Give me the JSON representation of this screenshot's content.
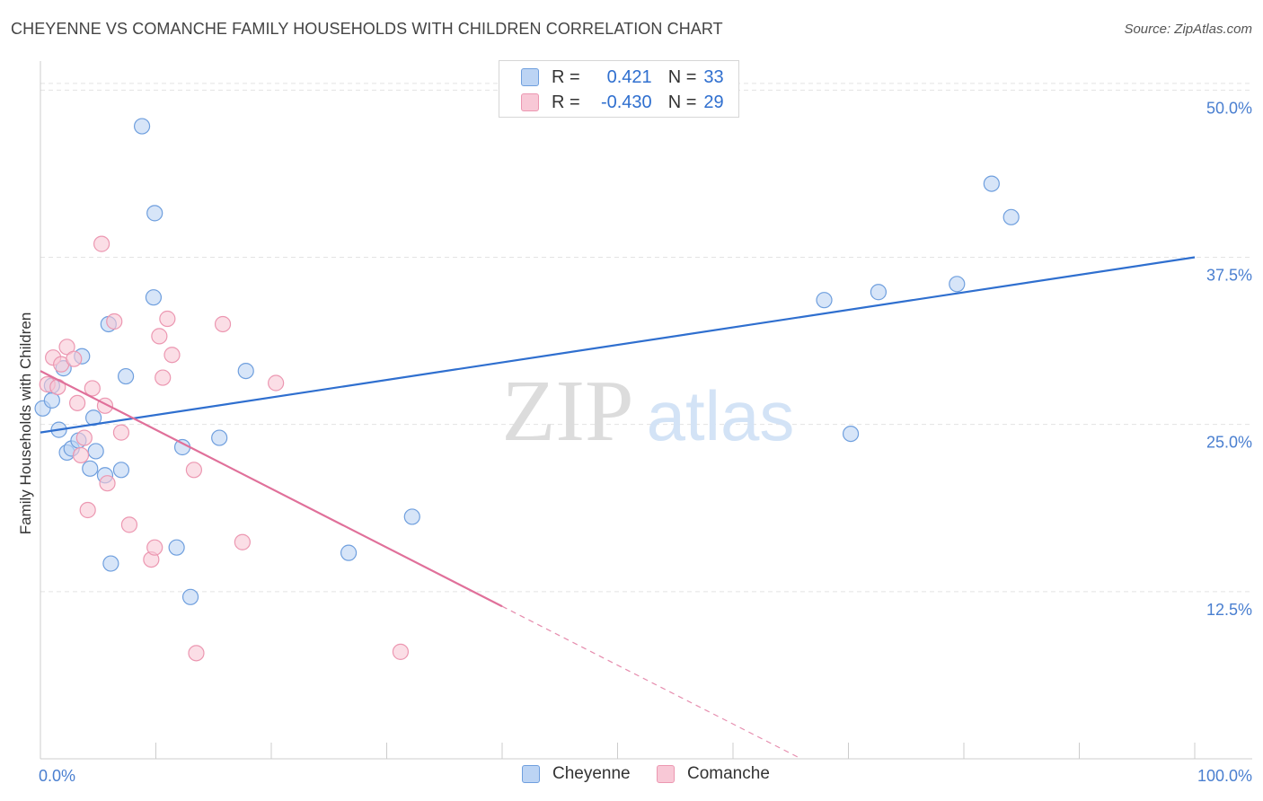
{
  "header": {
    "title": "CHEYENNE VS COMANCHE FAMILY HOUSEHOLDS WITH CHILDREN CORRELATION CHART",
    "source": "Source: ZipAtlas.com"
  },
  "watermark": {
    "zip": "ZIP",
    "atlas": "atlas"
  },
  "colors": {
    "cheyenne_fill": "#bcd4f4",
    "cheyenne_stroke": "#6f9fde",
    "cheyenne_line": "#2f6fcf",
    "comanche_fill": "#f8c8d6",
    "comanche_stroke": "#ec97b1",
    "comanche_line": "#e0709a",
    "axis_text": "#4a7fd0",
    "grid": "#e3e3e3"
  },
  "legend": {
    "rows": [
      {
        "r_label": "R =",
        "r_value": "0.421",
        "n_label": "N =",
        "n_value": "33"
      },
      {
        "r_label": "R =",
        "r_value": "-0.430",
        "n_label": "N =",
        "n_value": "29"
      }
    ]
  },
  "bottom_legend": {
    "cheyenne": "Cheyenne",
    "comanche": "Comanche"
  },
  "chart_data": {
    "type": "scatter",
    "title": "CHEYENNE VS COMANCHE FAMILY HOUSEHOLDS WITH CHILDREN CORRELATION CHART",
    "xlabel": "",
    "ylabel": "Family Households with Children",
    "xlim": [
      0,
      100
    ],
    "ylim": [
      0,
      51.5
    ],
    "x_tick_labels": [
      "0.0%",
      "100.0%"
    ],
    "y_ticks": [
      12.5,
      25.0,
      37.5,
      50.0
    ],
    "y_tick_labels": [
      "12.5%",
      "25.0%",
      "37.5%",
      "50.0%"
    ],
    "grid": true,
    "legend_position": "top-center",
    "series": [
      {
        "name": "Cheyenne",
        "r": 0.421,
        "n": 33,
        "trend": {
          "x0": 0,
          "y0": 24.4,
          "x1": 100,
          "y1": 37.5,
          "dashed_from": null
        },
        "points": [
          [
            0.2,
            26.2
          ],
          [
            1.0,
            27.9
          ],
          [
            1.0,
            26.8
          ],
          [
            1.6,
            24.6
          ],
          [
            2.0,
            29.2
          ],
          [
            2.3,
            22.9
          ],
          [
            2.7,
            23.2
          ],
          [
            3.3,
            23.8
          ],
          [
            3.6,
            30.1
          ],
          [
            4.3,
            21.7
          ],
          [
            4.6,
            25.5
          ],
          [
            4.8,
            23.0
          ],
          [
            5.6,
            21.2
          ],
          [
            5.9,
            32.5
          ],
          [
            6.1,
            14.6
          ],
          [
            7.0,
            21.6
          ],
          [
            7.4,
            28.6
          ],
          [
            8.8,
            47.3
          ],
          [
            9.8,
            34.5
          ],
          [
            9.9,
            40.8
          ],
          [
            12.3,
            23.3
          ],
          [
            11.8,
            15.8
          ],
          [
            13.0,
            12.1
          ],
          [
            15.5,
            24.0
          ],
          [
            17.8,
            29.0
          ],
          [
            26.7,
            15.4
          ],
          [
            32.2,
            18.1
          ],
          [
            67.9,
            34.3
          ],
          [
            70.2,
            24.3
          ],
          [
            72.6,
            34.9
          ],
          [
            79.4,
            35.5
          ],
          [
            82.4,
            43.0
          ],
          [
            84.1,
            40.5
          ]
        ]
      },
      {
        "name": "Comanche",
        "r": -0.43,
        "n": 29,
        "trend": {
          "x0": 0,
          "y0": 29.0,
          "x1": 100,
          "y1": -15.0,
          "dashed_from": 40
        },
        "points": [
          [
            0.6,
            28.0
          ],
          [
            1.1,
            30.0
          ],
          [
            1.5,
            27.8
          ],
          [
            1.8,
            29.5
          ],
          [
            2.3,
            30.8
          ],
          [
            2.9,
            29.9
          ],
          [
            3.2,
            26.6
          ],
          [
            3.5,
            22.7
          ],
          [
            3.8,
            24.0
          ],
          [
            4.1,
            18.6
          ],
          [
            4.5,
            27.7
          ],
          [
            5.3,
            38.5
          ],
          [
            5.6,
            26.4
          ],
          [
            5.8,
            20.6
          ],
          [
            6.4,
            32.7
          ],
          [
            7.0,
            24.4
          ],
          [
            7.7,
            17.5
          ],
          [
            9.6,
            14.9
          ],
          [
            9.9,
            15.8
          ],
          [
            10.3,
            31.6
          ],
          [
            10.6,
            28.5
          ],
          [
            11.0,
            32.9
          ],
          [
            11.4,
            30.2
          ],
          [
            13.3,
            21.6
          ],
          [
            15.8,
            32.5
          ],
          [
            17.5,
            16.2
          ],
          [
            20.4,
            28.1
          ],
          [
            31.2,
            8.0
          ],
          [
            13.5,
            7.9
          ]
        ]
      }
    ]
  }
}
